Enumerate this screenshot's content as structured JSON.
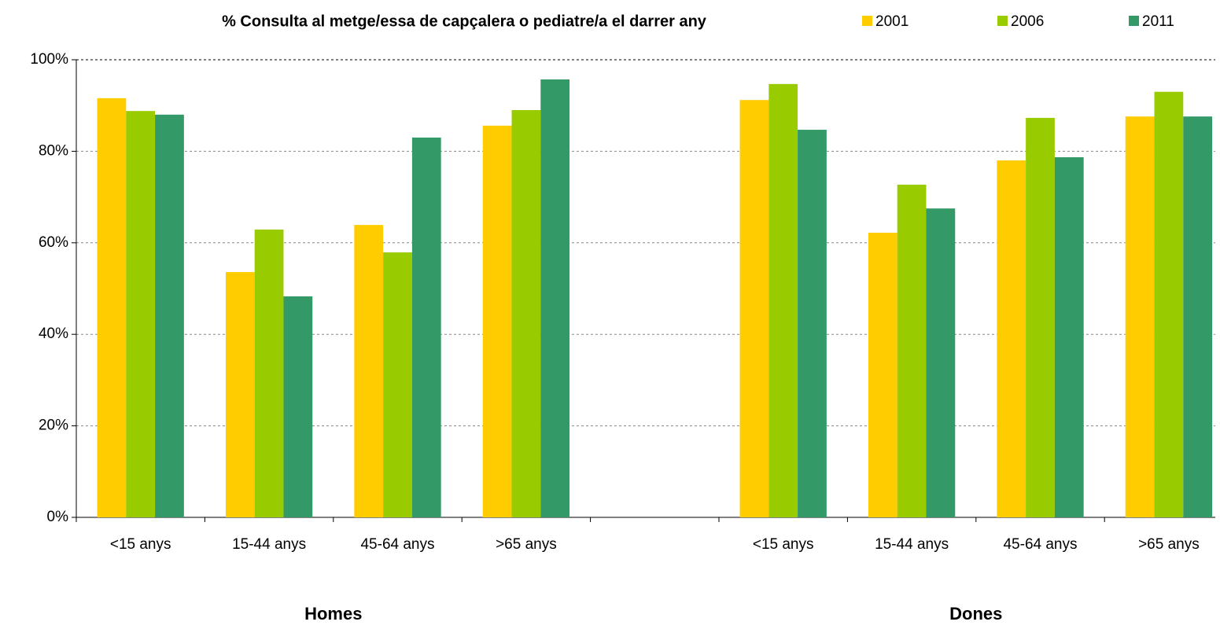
{
  "chart_data": {
    "type": "bar",
    "title": "% Consulta al metge/essa de capçalera o pediatre/a el darrer any",
    "categories": [
      "<15 anys",
      "15-44 anys",
      "45-64 anys",
      ">65 anys",
      null,
      "<15 anys",
      "15-44 anys",
      "45-64 anys",
      ">65 anys"
    ],
    "group_labels": [
      "Homes",
      "Dones"
    ],
    "series": [
      {
        "name": "2001",
        "color": "#ffcc00",
        "values": [
          91.6,
          53.6,
          63.9,
          85.6,
          null,
          91.2,
          62.2,
          78.0,
          87.6
        ]
      },
      {
        "name": "2006",
        "color": "#99cc00",
        "values": [
          88.8,
          62.9,
          57.9,
          89.0,
          null,
          94.7,
          72.7,
          87.3,
          93.0
        ]
      },
      {
        "name": "2011",
        "color": "#339966",
        "values": [
          88.0,
          48.3,
          83.0,
          95.7,
          null,
          84.7,
          67.5,
          78.7,
          87.6
        ]
      }
    ],
    "ylim": [
      0,
      100
    ],
    "yticks": [
      {
        "value": 0,
        "label": "0%"
      },
      {
        "value": 20,
        "label": "20%"
      },
      {
        "value": 40,
        "label": "40%"
      },
      {
        "value": 60,
        "label": "60%"
      },
      {
        "value": 80,
        "label": "80%"
      },
      {
        "value": 100,
        "label": "100%"
      }
    ],
    "grid": true,
    "legend": "top-right"
  }
}
